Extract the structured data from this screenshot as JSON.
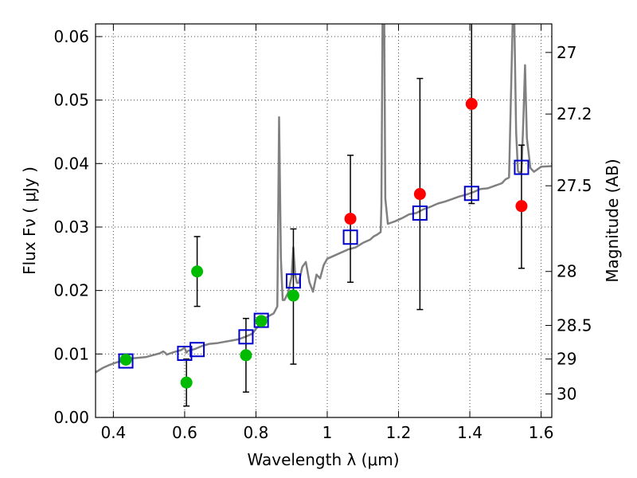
{
  "chart_data": {
    "type": "scatter",
    "xlabel": "Wavelength  λ (μm)",
    "ylabel": "Flux  Fν  ( μJy )",
    "ylabel_right": "Magnitude (AB)",
    "xlim": [
      0.35,
      1.63
    ],
    "ylim": [
      0.0,
      0.062
    ],
    "x_ticks": [
      0.4,
      0.6,
      0.8,
      1.0,
      1.2,
      1.4,
      1.6
    ],
    "x_tick_labels": [
      "0.4",
      "0.6",
      "0.8",
      "1",
      "1.2",
      "1.4",
      "1.6"
    ],
    "y_ticks": [
      0.0,
      0.01,
      0.02,
      0.03,
      0.04,
      0.05,
      0.06
    ],
    "y_tick_labels": [
      "0.00",
      "0.01",
      "0.02",
      "0.03",
      "0.04",
      "0.05",
      "0.06"
    ],
    "right_ticks": [
      {
        "flux": 0.0575,
        "label": "27"
      },
      {
        "flux": 0.0478,
        "label": "27.2"
      },
      {
        "flux": 0.0365,
        "label": "27.5"
      },
      {
        "flux": 0.023,
        "label": "28"
      },
      {
        "flux": 0.0145,
        "label": "28.5"
      },
      {
        "flux": 0.0092,
        "label": "29"
      },
      {
        "flux": 0.0037,
        "label": "30"
      }
    ],
    "grid": true,
    "series": [
      {
        "kind": "model-line",
        "color": "#808080",
        "x": [
          0.35,
          0.37,
          0.39,
          0.41,
          0.43,
          0.45,
          0.47,
          0.49,
          0.51,
          0.53,
          0.54,
          0.545,
          0.55,
          0.57,
          0.59,
          0.6,
          0.605,
          0.61,
          0.63,
          0.65,
          0.67,
          0.69,
          0.71,
          0.73,
          0.75,
          0.77,
          0.79,
          0.81,
          0.82,
          0.83,
          0.85,
          0.86,
          0.865,
          0.87,
          0.875,
          0.88,
          0.89,
          0.9,
          0.905,
          0.91,
          0.915,
          0.92,
          0.93,
          0.94,
          0.95,
          0.96,
          0.97,
          0.98,
          0.99,
          1.0,
          1.02,
          1.04,
          1.06,
          1.08,
          1.1,
          1.12,
          1.13,
          1.14,
          1.15,
          1.152,
          1.155,
          1.158,
          1.16,
          1.163,
          1.17,
          1.19,
          1.21,
          1.23,
          1.25,
          1.27,
          1.29,
          1.31,
          1.33,
          1.35,
          1.37,
          1.39,
          1.41,
          1.43,
          1.45,
          1.47,
          1.49,
          1.5,
          1.51,
          1.52,
          1.525,
          1.53,
          1.535,
          1.54,
          1.545,
          1.55,
          1.555,
          1.56,
          1.57,
          1.58,
          1.6,
          1.63
        ],
        "y": [
          0.0071,
          0.0078,
          0.0083,
          0.0087,
          0.0089,
          0.0093,
          0.0094,
          0.0095,
          0.0098,
          0.0101,
          0.0104,
          0.0102,
          0.0099,
          0.0103,
          0.0106,
          0.011,
          0.0102,
          0.0105,
          0.0108,
          0.0113,
          0.0116,
          0.0117,
          0.0119,
          0.0121,
          0.0123,
          0.0127,
          0.0132,
          0.0147,
          0.0153,
          0.0158,
          0.0164,
          0.0175,
          0.0473,
          0.025,
          0.0185,
          0.0185,
          0.0196,
          0.0222,
          0.0268,
          0.0225,
          0.0212,
          0.0212,
          0.0237,
          0.0245,
          0.0213,
          0.0198,
          0.0225,
          0.0219,
          0.024,
          0.025,
          0.0255,
          0.026,
          0.0265,
          0.0268,
          0.0275,
          0.028,
          0.0285,
          0.0288,
          0.0292,
          0.0335,
          0.062,
          0.062,
          0.062,
          0.0345,
          0.0305,
          0.0309,
          0.0314,
          0.032,
          0.0322,
          0.0328,
          0.0332,
          0.0337,
          0.034,
          0.0344,
          0.0348,
          0.0351,
          0.0355,
          0.036,
          0.0361,
          0.0365,
          0.0369,
          0.0375,
          0.0378,
          0.062,
          0.062,
          0.045,
          0.0388,
          0.0385,
          0.0388,
          0.0466,
          0.0555,
          0.044,
          0.0393,
          0.0387,
          0.0395,
          0.0396
        ]
      },
      {
        "kind": "model-squares",
        "color": "#0000cc",
        "x": [
          0.435,
          0.6,
          0.635,
          0.772,
          0.815,
          0.905,
          1.065,
          1.26,
          1.405,
          1.545
        ],
        "y": [
          0.0089,
          0.0101,
          0.0107,
          0.0127,
          0.0153,
          0.0215,
          0.0284,
          0.0322,
          0.0353,
          0.0394
        ]
      },
      {
        "kind": "observed-green",
        "color": "#00bb00",
        "x": [
          0.435,
          0.605,
          0.635,
          0.772,
          0.815,
          0.905
        ],
        "y": [
          0.0091,
          0.0055,
          0.023,
          0.0098,
          0.0152,
          0.0192
        ],
        "err_low": [
          null,
          0.0037,
          0.0055,
          0.0058,
          null,
          0.0108
        ],
        "err_high": [
          null,
          0.0037,
          0.0055,
          0.0058,
          null,
          0.0105
        ]
      },
      {
        "kind": "observed-red",
        "color": "#ff0000",
        "x": [
          1.065,
          1.26,
          1.405,
          1.545
        ],
        "y": [
          0.0313,
          0.0352,
          0.0494,
          0.0333
        ],
        "err_low": [
          0.01,
          0.0182,
          0.0157,
          0.0098
        ],
        "err_high": [
          0.01,
          0.0182,
          0.02,
          0.0096
        ]
      }
    ]
  }
}
